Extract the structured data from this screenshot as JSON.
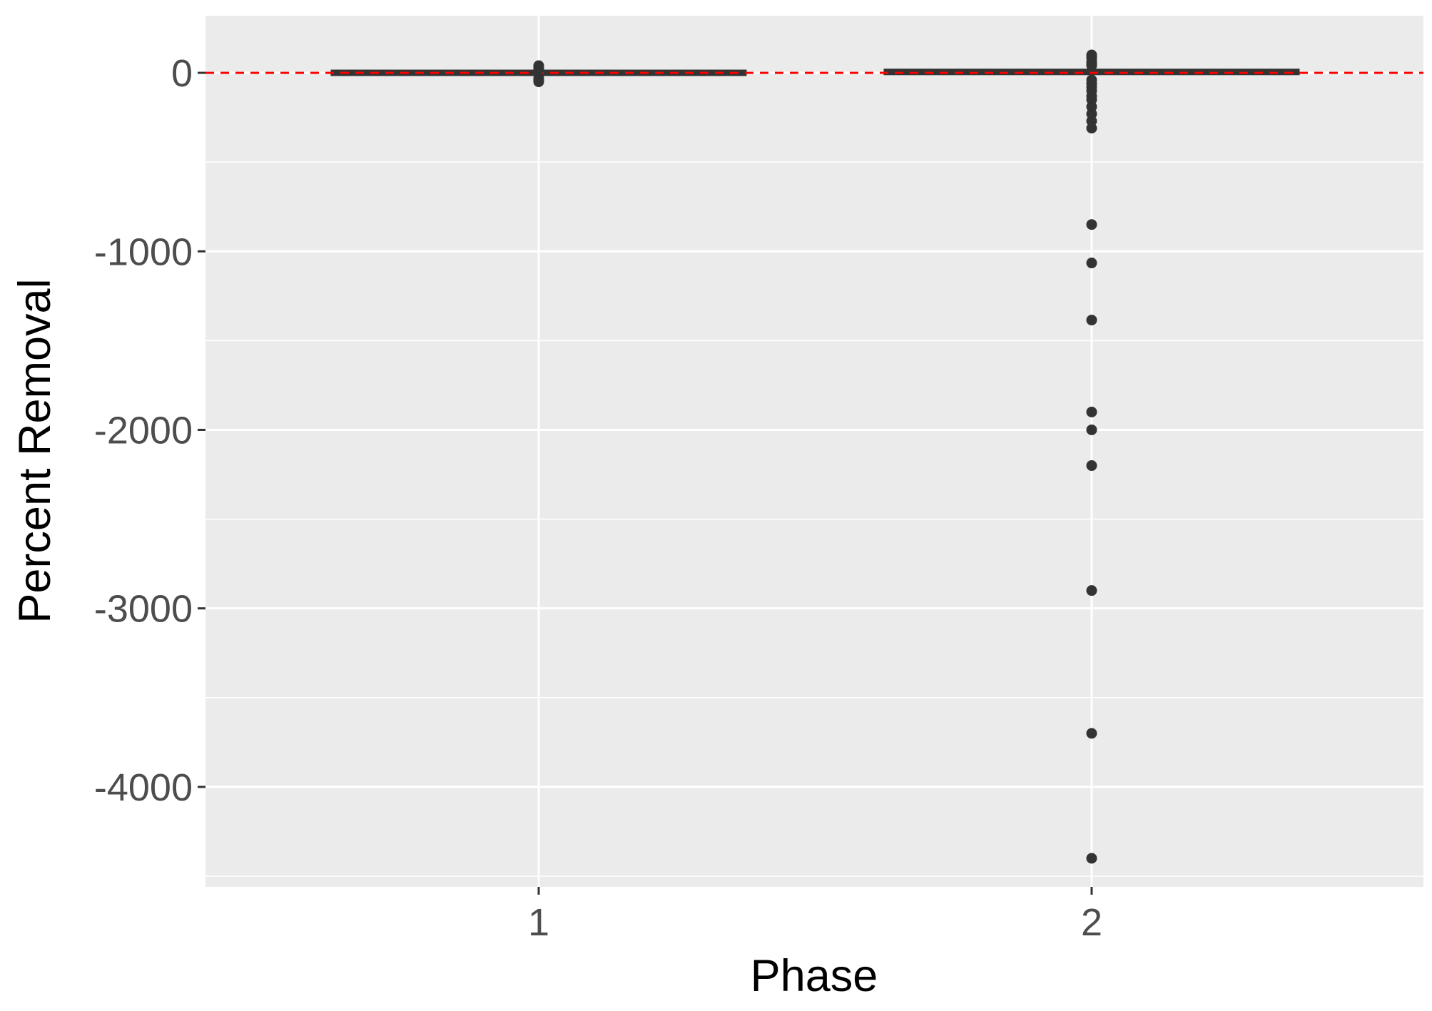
{
  "chart_data": {
    "type": "boxplot",
    "xlabel": "Phase",
    "ylabel": "Percent Removal",
    "categories": [
      "1",
      "2"
    ],
    "ylim": [
      -4560,
      320
    ],
    "yticks": [
      0,
      -1000,
      -2000,
      -3000,
      -4000
    ],
    "ytick_labels": [
      "0",
      "-1000",
      "-2000",
      "-3000",
      "-4000"
    ],
    "grid": true,
    "reference_line": {
      "y": 0,
      "color": "#ff0000",
      "style": "dashed"
    },
    "boxes": [
      {
        "category": "1",
        "q1": -5,
        "median": 0,
        "q3": 5,
        "whisker_low": -10,
        "whisker_high": 10
      },
      {
        "category": "2",
        "q1": -5,
        "median": 5,
        "q3": 15,
        "whisker_low": -15,
        "whisker_high": 30
      }
    ],
    "outliers": [
      {
        "category": "1",
        "values": [
          40,
          30,
          20,
          -30,
          -40,
          -50
        ]
      },
      {
        "category": "2",
        "values": [
          100,
          90,
          80,
          60,
          50,
          40,
          -40,
          -60,
          -80,
          -100,
          -130,
          -150,
          -190,
          -230,
          -270,
          -310,
          -850,
          -1065,
          -1385,
          -1900,
          -2000,
          -2200,
          -2900,
          -3700,
          -4400
        ]
      }
    ],
    "colors": {
      "panel_background": "#ebebeb",
      "grid": "#ffffff",
      "box": "#333333",
      "point": "#333333",
      "reference_line": "#ff0000"
    }
  }
}
